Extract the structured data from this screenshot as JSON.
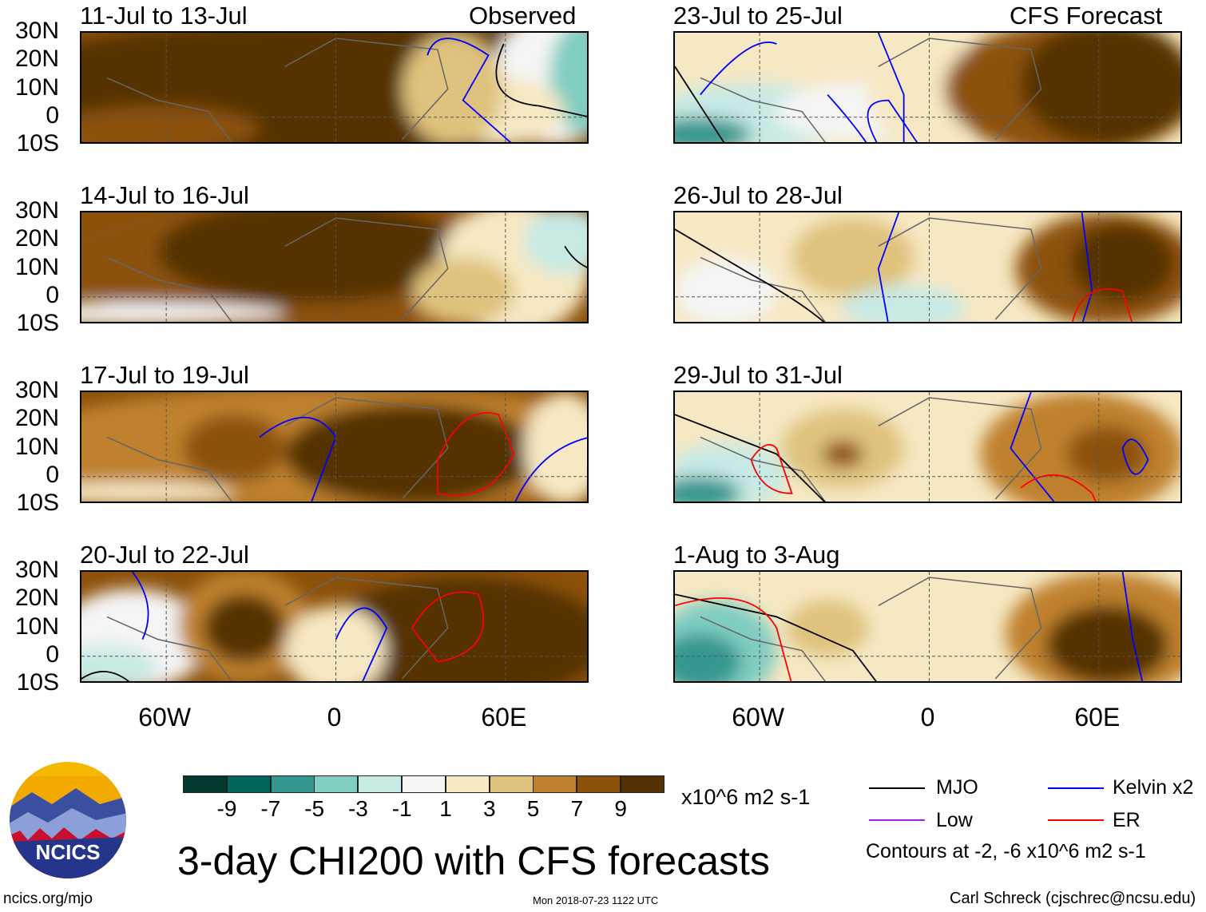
{
  "headers": {
    "observed": "Observed",
    "forecast": "CFS Forecast"
  },
  "panels": [
    {
      "title": "11-Jul to 13-Jul",
      "group": "observed"
    },
    {
      "title": "14-Jul to 16-Jul",
      "group": "observed"
    },
    {
      "title": "17-Jul to 19-Jul",
      "group": "observed"
    },
    {
      "title": "20-Jul to 22-Jul",
      "group": "observed"
    },
    {
      "title": "23-Jul to 25-Jul",
      "group": "forecast"
    },
    {
      "title": "26-Jul to 28-Jul",
      "group": "forecast"
    },
    {
      "title": "29-Jul to 31-Jul",
      "group": "forecast"
    },
    {
      "title": "1-Aug to 3-Aug",
      "group": "forecast"
    }
  ],
  "lat_labels": [
    "30N",
    "20N",
    "10N",
    "0",
    "10S"
  ],
  "lon_labels": [
    "60W",
    "0",
    "60E"
  ],
  "colorbar": {
    "labels": [
      "-9",
      "-7",
      "-5",
      "-3",
      "-1",
      "1",
      "3",
      "5",
      "7",
      "9"
    ],
    "colors": [
      "#03392e",
      "#01665e",
      "#35978f",
      "#80cdc1",
      "#c7eae5",
      "#f5f5f5",
      "#f6e8c3",
      "#dfc27d",
      "#bf812d",
      "#8c510a",
      "#543005"
    ],
    "units": "x10^6 m2 s-1"
  },
  "legend": {
    "items": [
      {
        "label": "MJO",
        "color": "#000000"
      },
      {
        "label": "Kelvin x2",
        "color": "#0000ff"
      },
      {
        "label": "Low",
        "color": "#a020f0"
      },
      {
        "label": "ER",
        "color": "#ff0000"
      }
    ],
    "note": "Contours at -2, -6 x10^6 m2 s-1"
  },
  "logo": {
    "text": "NCICS"
  },
  "main_title": "3-day CHI200 with CFS forecasts",
  "footer": {
    "left": "ncics.org/mjo",
    "center": "Mon 2018-07-23 1122 UTC",
    "right": "Carl Schreck (cjschrec@ncsu.edu)"
  }
}
